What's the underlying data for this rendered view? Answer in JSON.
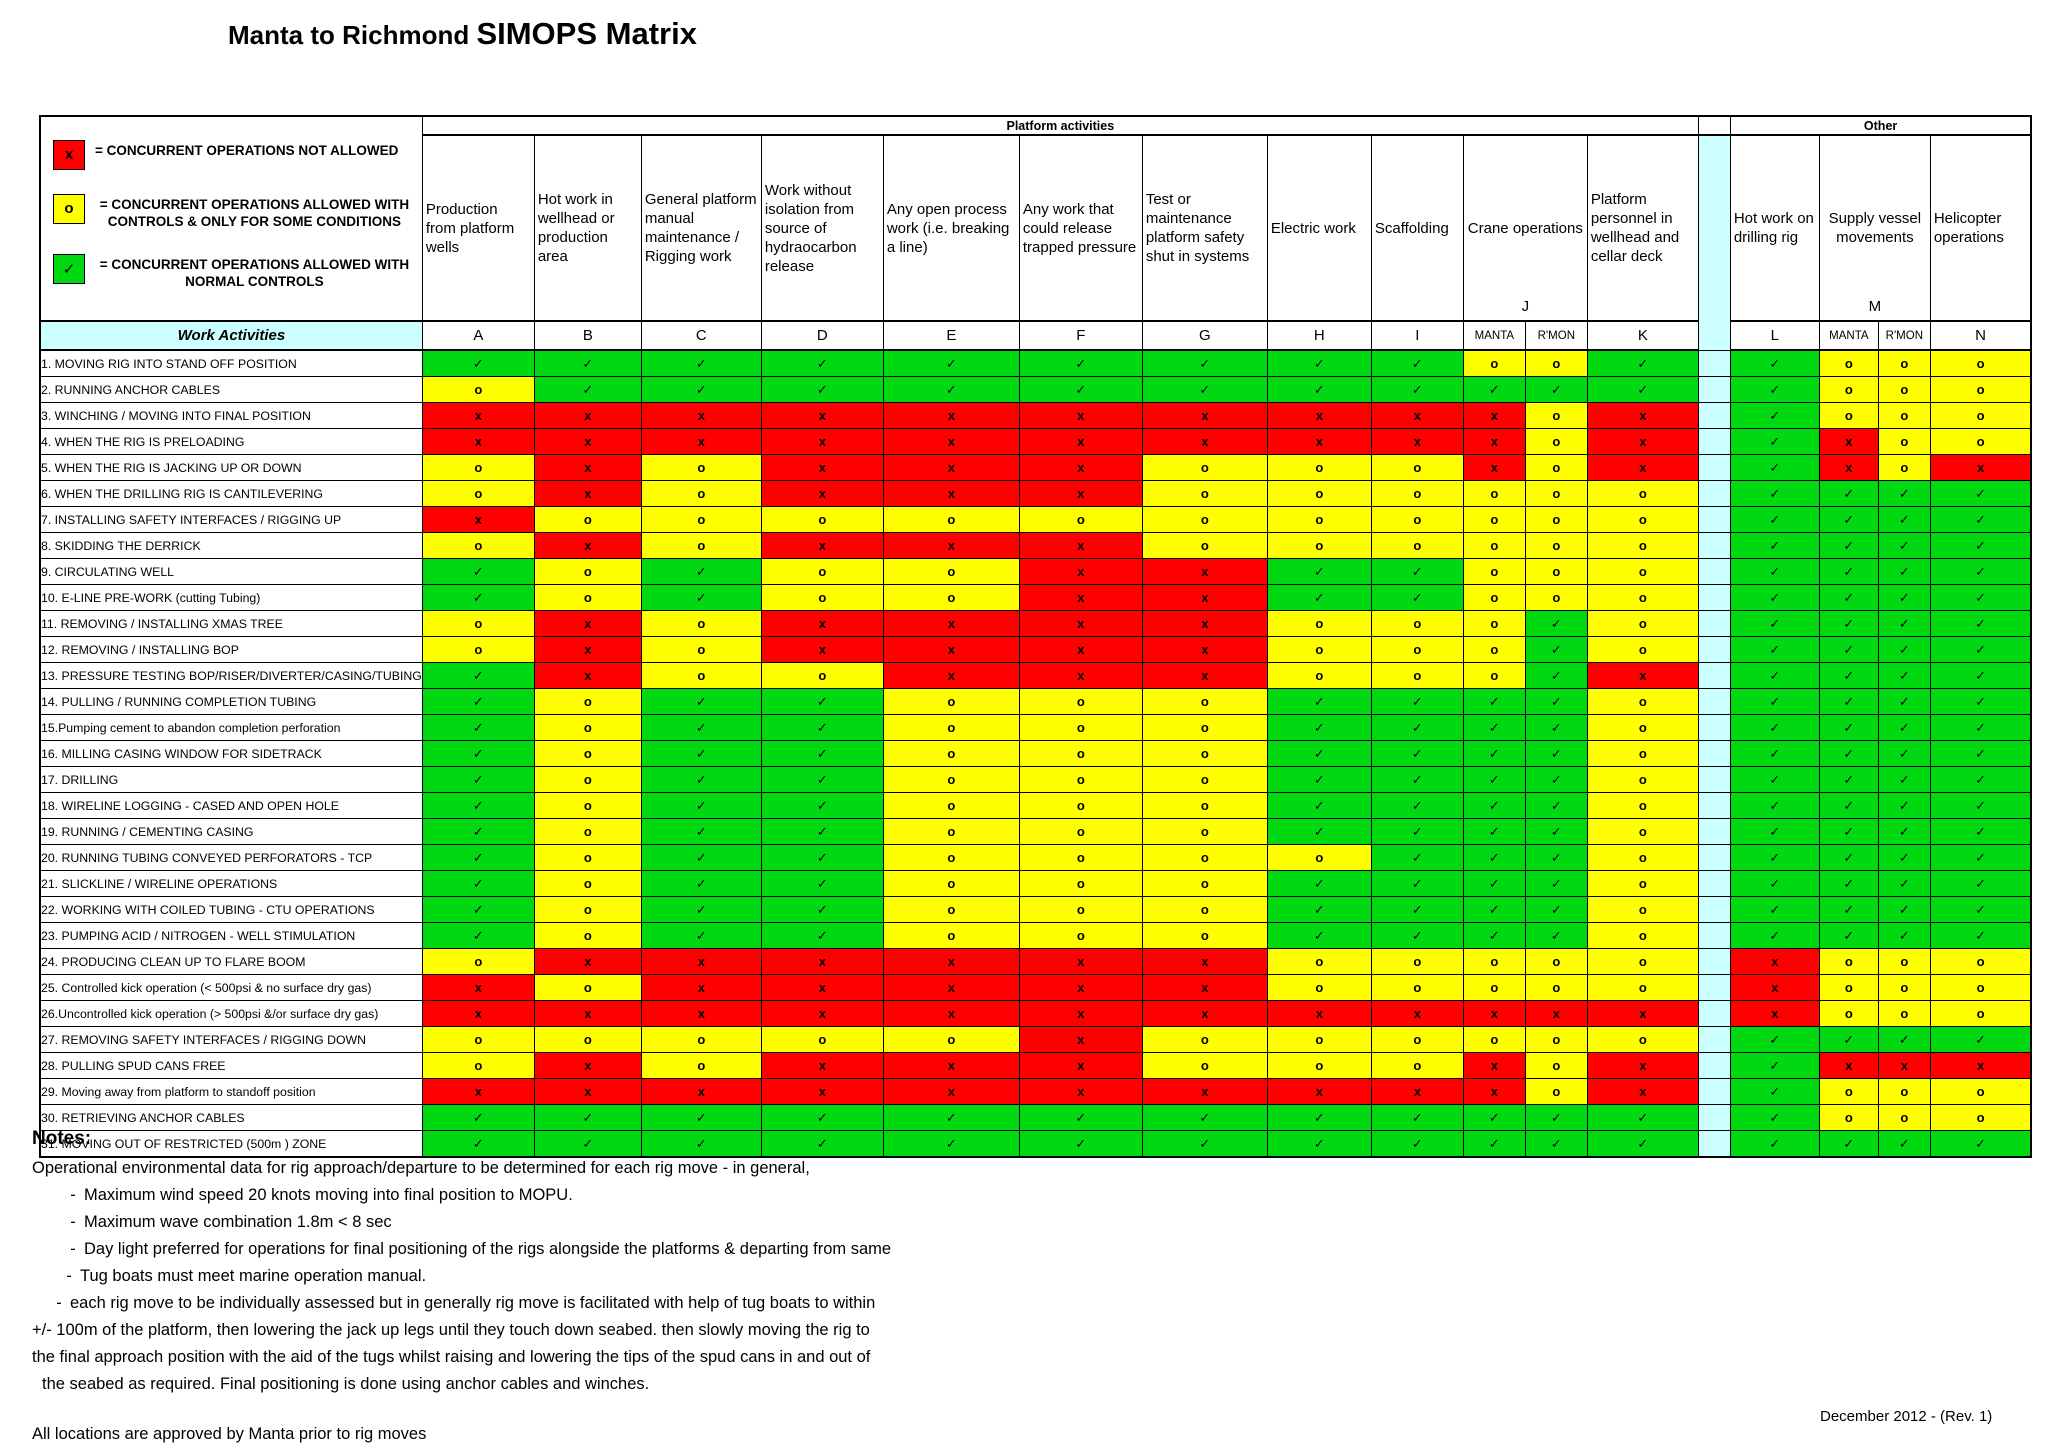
{
  "title": {
    "prefix": "Manta to Richmond ",
    "main": "SIMOPS Matrix"
  },
  "colors": {
    "allowed_green": "#00d911",
    "controls_yellow": "#ffff00",
    "not_allowed_red": "#ff0000",
    "header_cyan": "#ccffff"
  },
  "symbols": {
    "v": {
      "glyph": "✓",
      "color": "#00d911",
      "meaning": "concurrent operations allowed with normal controls"
    },
    "o": {
      "glyph": "o",
      "color": "#ffff00",
      "meaning": "concurrent operations allowed with controls & only for some conditions"
    },
    "x": {
      "glyph": "x",
      "color": "#ff0000",
      "meaning": "concurrent operations not allowed"
    }
  },
  "legend": {
    "dash": "-",
    "items": [
      {
        "symbol": "x",
        "color": "#ff0000",
        "normal": "= CONCURRENT OPERATIONS ",
        "bold": "NOT ALLOWED"
      },
      {
        "symbol": "o",
        "color": "#ffff00",
        "normal": "= CONCURRENT OPERATIONS ",
        "bold": "ALLOWED WITH CONTROLS & ONLY FOR  SOME  CONDITIONS"
      },
      {
        "symbol": "✓",
        "color": "#00d911",
        "normal": "= CONCURRENT OPERATIONS ",
        "bold": "ALLOWED WITH NORMAL CONTROLS"
      }
    ]
  },
  "table": {
    "group_headers": {
      "platform": "Platform activities",
      "other": "Other"
    },
    "work_activities_label": "Work Activities",
    "columns": [
      {
        "id": "A",
        "desc": "Production from platform wells"
      },
      {
        "id": "B",
        "desc": "Hot work in wellhead or production area"
      },
      {
        "id": "C",
        "desc": "General platform manual maintenance / Rigging work"
      },
      {
        "id": "D",
        "desc": "Work without isolation from source of hydraocarbon release"
      },
      {
        "id": "E",
        "desc": "Any open process work (i.e. breaking a line)"
      },
      {
        "id": "F",
        "desc": "Any work that could release trapped pressure"
      },
      {
        "id": "G",
        "desc": "Test or maintenance platform safety shut in systems"
      },
      {
        "id": "H",
        "desc": "Electric work"
      },
      {
        "id": "I",
        "desc": "Scaffolding"
      },
      {
        "id": "J",
        "desc": "Crane operations",
        "sub": [
          "MANTA",
          "R'MON"
        ]
      },
      {
        "id": "K",
        "desc": "Platform personnel in wellhead and cellar deck"
      },
      {
        "id": "L",
        "desc": "Hot work on drilling rig"
      },
      {
        "id": "M",
        "desc": "Supply vessel movements",
        "sub": [
          "MANTA",
          "R'MON"
        ]
      },
      {
        "id": "N",
        "desc": "Helicopter operations"
      }
    ],
    "value_column_order": [
      "A",
      "B",
      "C",
      "D",
      "E",
      "F",
      "G",
      "H",
      "I",
      "J-MANTA",
      "J-R'MON",
      "K",
      "L",
      "M-MANTA",
      "M-R'MON",
      "N"
    ],
    "rows": [
      {
        "label": "1. MOVING RIG INTO STAND OFF POSITION",
        "values": "vvvvvvvvvoovvooo"
      },
      {
        "label": "2. RUNNING ANCHOR CABLES",
        "values": "ovvvvvvvvvvvvooo"
      },
      {
        "label": "3. WINCHING / MOVING INTO FINAL POSITION",
        "values": "xxxxxxxxxxoxvooo"
      },
      {
        "label": "4. WHEN THE RIG IS PRELOADING",
        "values": "xxxxxxxxxxoxvxoo"
      },
      {
        "label": "5. WHEN THE RIG IS JACKING UP OR DOWN",
        "values": "oxoxxxoooxoxvxox"
      },
      {
        "label": "6. WHEN THE DRILLING RIG IS CANTILEVERING",
        "values": "oxoxxxoooooovvvv"
      },
      {
        "label": "7. INSTALLING SAFETY INTERFACES / RIGGING UP",
        "values": "xooooooooooovvvv"
      },
      {
        "label": "8. SKIDDING THE DERRICK",
        "values": "oxoxxxoooooovvvv"
      },
      {
        "label": "9. CIRCULATING WELL",
        "values": "vovooxxvvooovvvv"
      },
      {
        "label": "10. E-LINE PRE-WORK (cutting Tubing)",
        "values": "vovooxxvvooovvvv"
      },
      {
        "label": "11. REMOVING / INSTALLING XMAS TREE",
        "values": "oxoxxxxooovovvvv"
      },
      {
        "label": "12. REMOVING / INSTALLING BOP",
        "values": "oxoxxxxooovovvvv"
      },
      {
        "label": "13. PRESSURE TESTING BOP/RISER/DIVERTER/CASING/TUBING",
        "values": "vxooxxxooovxvvvv"
      },
      {
        "label": "14. PULLING / RUNNING COMPLETION TUBING",
        "values": "vovvooovvvvovvvv"
      },
      {
        "label": "15.Pumping cement to abandon completion perforation",
        "values": "vovvooovvvvovvvv"
      },
      {
        "label": "16. MILLING CASING WINDOW FOR SIDETRACK",
        "values": "vovvooovvvvovvvv"
      },
      {
        "label": "17. DRILLING",
        "values": "vovvooovvvvovvvv"
      },
      {
        "label": "18. WIRELINE LOGGING - CASED AND OPEN HOLE",
        "values": "vovvooovvvvovvvv"
      },
      {
        "label": "19. RUNNING / CEMENTING CASING",
        "values": "vovvooovvvvovvvv"
      },
      {
        "label": "20. RUNNING TUBING CONVEYED PERFORATORS - TCP",
        "values": "vovvoooovvvovvvv"
      },
      {
        "label": "21. SLICKLINE / WIRELINE OPERATIONS",
        "values": "vovvooovvvvovvvv"
      },
      {
        "label": "22. WORKING WITH COILED TUBING - CTU OPERATIONS",
        "values": "vovvooovvvvovvvv"
      },
      {
        "label": "23. PUMPING ACID / NITROGEN - WELL STIMULATION",
        "values": "vovvooovvvvovvvv"
      },
      {
        "label": "24. PRODUCING CLEAN UP TO FLARE BOOM",
        "values": "oxxxxxxoooooxooo"
      },
      {
        "label": "25. Controlled kick operation (< 500psi & no surface dry gas)",
        "values": "xoxxxxxoooooxooo"
      },
      {
        "label": "26.Uncontrolled kick operation (> 500psi &/or surface dry gas)",
        "values": "xxxxxxxxxxxxxooo"
      },
      {
        "label": "27. REMOVING SAFETY INTERFACES / RIGGING DOWN",
        "values": "oooooxoooooovvvv"
      },
      {
        "label": "28. PULLING SPUD CANS FREE",
        "values": "oxoxxxoooxoxvxxx"
      },
      {
        "label": "29. Moving away from platform to standoff position",
        "values": "xxxxxxxxxxoxvooo"
      },
      {
        "label": "30. RETRIEVING ANCHOR CABLES",
        "values": "vvvvvvvvvvvvvooo"
      },
      {
        "label": "31. MOVING OUT OF RESTRICTED (500m ) ZONE",
        "values": "vvvvvvvvvvvvvvvv"
      }
    ]
  },
  "notes": {
    "heading": "Notes:",
    "dash": "-",
    "intro": "Operational environmental data for rig approach/departure to be determined for each rig move - in general,",
    "bullets": [
      "Maximum wind speed 20 knots moving into final position to MOPU.",
      "Maximum wave combination 1.8m < 8 sec",
      "Day light preferred for operations for final positioning of the rigs alongside the platforms & departing from same",
      "Tug boats must meet marine operation manual.",
      "each rig move to be individually assessed but in generally rig move is facilitated with help of tug boats to within"
    ],
    "continuation": [
      "+/- 100m of the platform, then lowering the  jack up legs until they touch down seabed. then slowly moving the rig to",
      "the  final approach position  with the aid of the tugs whilst raising and lowering the tips of the spud cans in and out of",
      "the seabed as required. Final positioning is done using anchor cables and winches."
    ],
    "footer_line": "All locations are approved by Manta prior to rig moves"
  },
  "footer": {
    "revision": "December 2012 - (Rev. 1)"
  }
}
